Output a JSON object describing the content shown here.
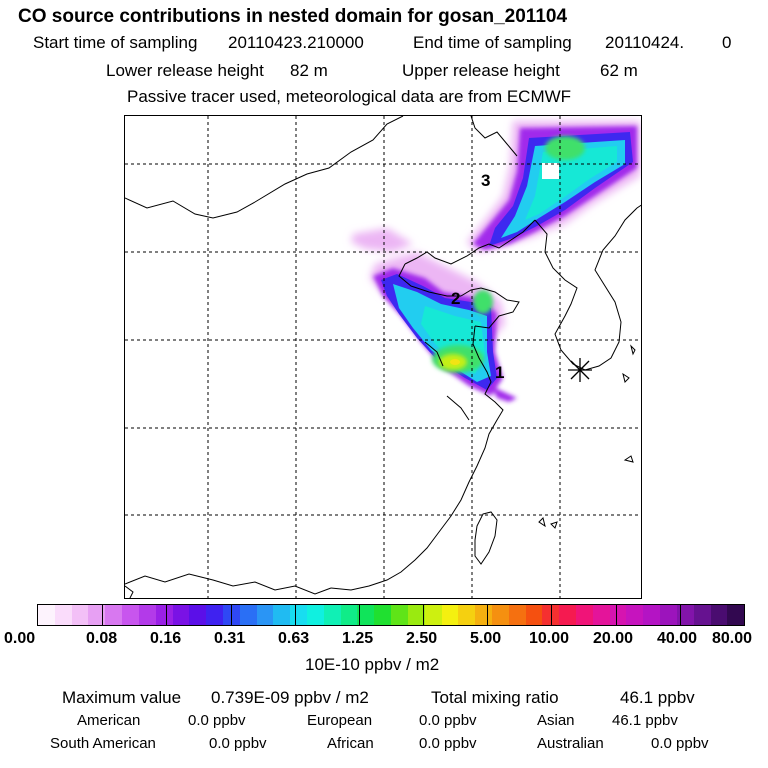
{
  "header": {
    "title": "CO  source contributions in nested domain for gosan_201104",
    "start_label": "Start time of sampling",
    "start_value": "20110423.210000",
    "end_label": "End time of sampling",
    "end_value": "20110424.",
    "end_suffix": "0",
    "lower_label": "Lower release height",
    "lower_value": "82 m",
    "upper_label": "Upper release height",
    "upper_value": "62 m",
    "note": "Passive tracer used, meteorological data are from ECMWF"
  },
  "map": {
    "labels": [
      "3",
      "2",
      "1"
    ],
    "station_marker": "station-star-icon"
  },
  "colorbar": {
    "ticks": [
      "0.00",
      "0.08",
      "0.16",
      "0.31",
      "0.63",
      "1.25",
      "2.50",
      "5.00",
      "10.00",
      "20.00",
      "40.00",
      "80.00"
    ],
    "unit": "10E-10 ppbv / m2",
    "colors": [
      "#fdf3fd",
      "#fadcfb",
      "#f3c0f7",
      "#e7a0f3",
      "#d878f0",
      "#c855ee",
      "#b33ae9",
      "#9a20e6",
      "#7a12e5",
      "#5b0fe8",
      "#3f22f0",
      "#2f48f5",
      "#2a6ff5",
      "#2a95f5",
      "#20bbf2",
      "#18ddf0",
      "#10f0e0",
      "#10f0b5",
      "#10ec88",
      "#10e45a",
      "#20e030",
      "#5fe418",
      "#9aea10",
      "#cdf010",
      "#f4f010",
      "#f5d010",
      "#f5b010",
      "#f59010",
      "#f57010",
      "#f55010",
      "#f53030",
      "#f51a50",
      "#f01478",
      "#e4149a",
      "#d614b0",
      "#c614be",
      "#b414c4",
      "#9c14bc",
      "#8214aa",
      "#661290",
      "#4a0c70",
      "#320850"
    ]
  },
  "stats": {
    "max_label": "Maximum value",
    "max_value": "0.739E-09 ppbv / m2",
    "total_label": "Total mixing ratio",
    "total_value": "46.1 ppbv",
    "regions": [
      {
        "name": "American",
        "value": "0.0 ppbv"
      },
      {
        "name": "European",
        "value": "0.0 ppbv"
      },
      {
        "name": "Asian",
        "value": "46.1 ppbv"
      },
      {
        "name": "South American",
        "value": "0.0 ppbv"
      },
      {
        "name": "African",
        "value": "0.0 ppbv"
      },
      {
        "name": "Australian",
        "value": "0.0 ppbv"
      }
    ]
  }
}
